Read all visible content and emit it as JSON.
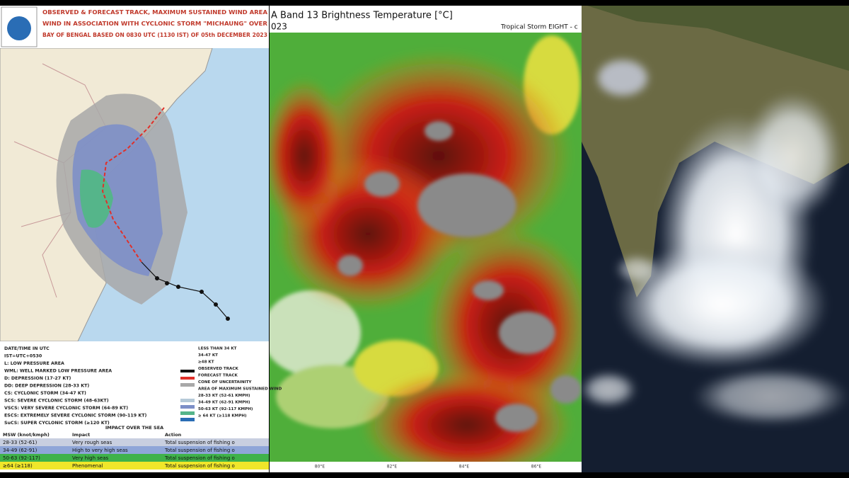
{
  "left_panel": {
    "header": [
      "OBSERVED & FORECAST TRACK, MAXIMUM SUSTAINED WIND AREA",
      "WIND IN ASSOCIATION WITH CYCLONIC STORM \"MICHAUNG\" OVER",
      "BAY OF BENGAL BASED ON 0830 UTC (1130 IST) OF 05th DECEMBER 2023"
    ],
    "legend_left": [
      "DATE/TIME IN UTC",
      "IST=UTC+0530",
      "L: LOW PRESSURE AREA",
      "WML: WELL MARKED LOW PRESSURE AREA",
      "D: DEPRESSION (17-27 KT)",
      "DD: DEEP DEPRESSION (28-33 KT)",
      "CS: CYCLONIC STORM (34-47 KT)",
      "SCS: SEVERE CYCLONIC STORM (48-63KT)",
      "VSCS: VERY SEVERE CYCLONIC STORM (64-89 KT)",
      "ESCS: EXTREMELY SEVERE CYCLONIC STORM (90-119 KT)",
      "SuCS: SUPER CYCLONIC STORM (≥120 KT)"
    ],
    "legend_right": [
      "LESS THAN 34 KT",
      "34-47 KT",
      "≥48 KT",
      "OBSERVED TRACK",
      "FORECAST TRACK",
      "CONE OF UNCERTAINITY",
      "AREA OF MAXIMUM SUSTAINED WIND",
      "28-33 KT (52-61 KMPH)",
      "34-49 KT (62-91 KMPH)",
      "50-63 KT (92-117 KMPH)",
      "≥ 64 KT (≥118 KMPH)"
    ],
    "impact_table": {
      "title": "IMPACT OVER THE SEA",
      "headers": [
        "MSW (knot/kmph)",
        "Impact",
        "Action"
      ],
      "rows": [
        [
          "28-33 (52-61)",
          "Very rough seas",
          "Total suspension of fishing o"
        ],
        [
          "34-49 (62-91)",
          "High to very high seas",
          "Total suspension of fishing o"
        ],
        [
          "50-63 (92-117)",
          "Very high seas",
          "Total suspension of fishing o"
        ],
        [
          "≥64 (≥118)",
          "Phenomenal",
          "Total suspension of fishing o"
        ]
      ]
    }
  },
  "middle_panel": {
    "title": "A Band 13 Brightness Temperature [°C]",
    "year_fragment": "023",
    "storm_label": "Tropical Storm EIGHT - c",
    "x_axis_labels": [
      "80°E",
      "82°E",
      "84°E",
      "86°E"
    ]
  }
}
